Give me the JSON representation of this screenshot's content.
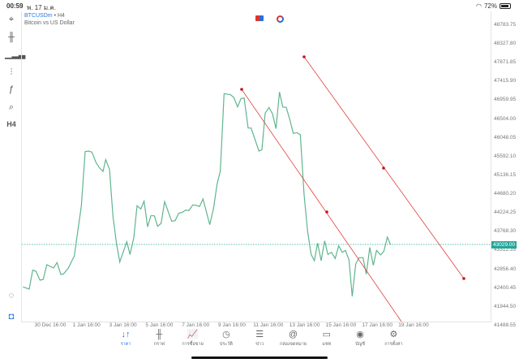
{
  "status": {
    "time": "00:59",
    "date": "พ. 17 ม.ค.",
    "battery": "72%",
    "battery_level": 0.72
  },
  "symbol": {
    "code": "BTCUSDm",
    "timeframe": "• H4",
    "description": "Bitcoin vs US Dollar"
  },
  "toolbar": [
    {
      "icon": "crosshair-icon",
      "glyph": "⌖"
    },
    {
      "icon": "candlestick-icon",
      "glyph": "╫"
    },
    {
      "icon": "indicators-icon",
      "glyph": "▁▂▃"
    },
    {
      "icon": "sliders-icon",
      "glyph": "⫶"
    },
    {
      "icon": "function-icon",
      "glyph": "ƒ"
    },
    {
      "icon": "objects-icon",
      "glyph": "⌕"
    },
    {
      "icon": "timeframe-label",
      "glyph": "H4"
    }
  ],
  "price_axis": [
    "48783.75",
    "48327.80",
    "47871.85",
    "47415.90",
    "46959.95",
    "46504.00",
    "46048.05",
    "45592.10",
    "45136.15",
    "44680.20",
    "44224.25",
    "43768.30",
    "43312.35",
    "42856.40",
    "42400.45",
    "41944.50",
    "41488.55"
  ],
  "current_price": "43029.00",
  "time_axis": [
    "30 Dec 16:00",
    "1 Jan 16:00",
    "3 Jan 16:00",
    "5 Jan 16:00",
    "7 Jan 16:00",
    "9 Jan 16:00",
    "11 Jan 16:00",
    "13 Jan 16:00",
    "15 Jan 16:00",
    "17 Jan 16:00",
    "19 Jan 16:00"
  ],
  "colors": {
    "line": "#5fb58e",
    "trendline": "#e0403a",
    "accent": "#2a7ae2",
    "current": "#26a69a"
  },
  "nav": [
    {
      "label": "ราคา",
      "icon": "quotes-icon",
      "glyph": "↓↑",
      "active": true
    },
    {
      "label": "กราฟ",
      "icon": "chart-icon",
      "glyph": "╫"
    },
    {
      "label": "การซื้อขาย",
      "icon": "trade-icon",
      "glyph": "📈"
    },
    {
      "label": "ประวัติ",
      "icon": "history-icon",
      "glyph": "◷"
    },
    {
      "label": "ข่าว",
      "icon": "news-icon",
      "glyph": "☰"
    },
    {
      "label": "กล่องจดหมาย",
      "icon": "mailbox-icon",
      "glyph": "@"
    },
    {
      "label": "แชท",
      "icon": "chat-icon",
      "glyph": "▭"
    },
    {
      "label": "บัญชี",
      "icon": "account-icon",
      "glyph": "◉"
    },
    {
      "label": "การตั้งค่า",
      "icon": "settings-icon",
      "glyph": "⚙"
    }
  ]
}
